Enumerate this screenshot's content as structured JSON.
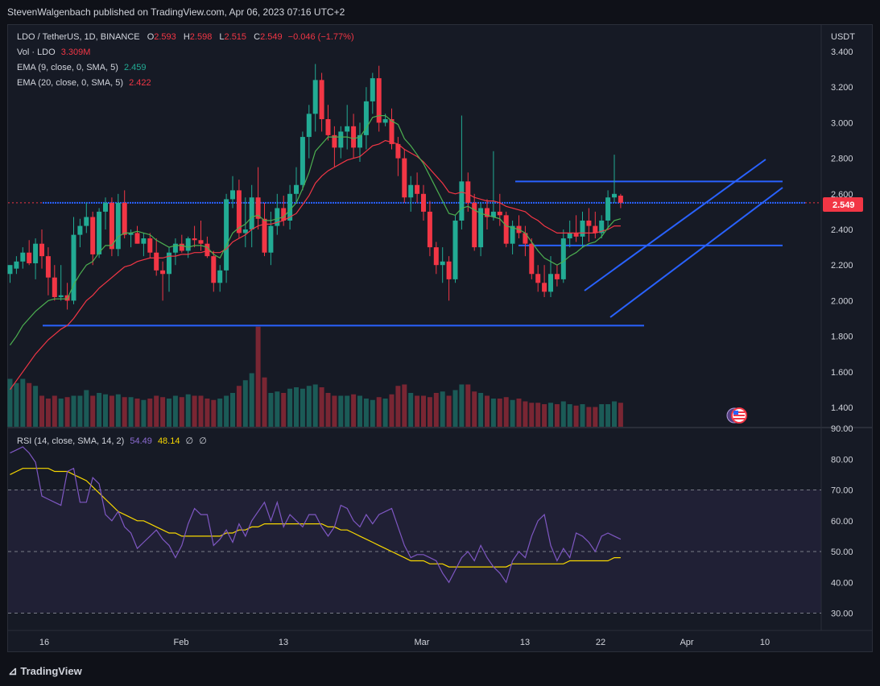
{
  "header": {
    "publisher": "StevenWalgenbach published on TradingView.com, Apr 06, 2023 07:16 UTC+2"
  },
  "legend": {
    "symbol": "LDO / TetherUS, 1D, BINANCE",
    "o_key": "O",
    "o_val": "2.593",
    "h_key": "H",
    "h_val": "2.598",
    "l_key": "L",
    "l_val": "2.515",
    "c_key": "C",
    "c_val": "2.549",
    "change": "−0.046 (−1.77%)",
    "vol_label": "Vol · LDO",
    "vol_val": "3.309M",
    "ema9_label": "EMA (9, close, 0, SMA, 5)",
    "ema9_val": "2.459",
    "ema20_label": "EMA (20, close, 0, SMA, 5)",
    "ema20_val": "2.422",
    "rsi_label": "RSI (14, close, SMA, 14, 2)",
    "rsi_val": "54.49",
    "rsi_ma_val": "48.14",
    "rsi_extra1": "∅",
    "rsi_extra2": "∅"
  },
  "price_axis": {
    "currency": "USDT",
    "current_price": "2.549",
    "ticks": [
      "3.400",
      "3.200",
      "3.000",
      "2.800",
      "2.600",
      "2.400",
      "2.200",
      "2.000",
      "1.800",
      "1.600",
      "1.400"
    ]
  },
  "rsi_axis": {
    "ticks": [
      "90.00",
      "80.00",
      "70.00",
      "60.00",
      "50.00",
      "40.00",
      "30.00"
    ]
  },
  "time_axis": {
    "labels": [
      "16",
      "Feb",
      "13",
      "Mar",
      "13",
      "22",
      "Apr",
      "10"
    ]
  },
  "footer": {
    "brand": "TradingView"
  },
  "colors": {
    "up": "#22ab94",
    "down": "#f23645",
    "ema9": "#4caf50",
    "ema20": "#f23645",
    "rsi": "#7e57c2",
    "rsi_ma": "#f7d700",
    "trendline": "#2962ff",
    "background": "#161a25"
  },
  "chart_data": {
    "type": "candlestick",
    "title": "LDO / TetherUS, 1D, BINANCE",
    "ylim": [
      1.34,
      3.46
    ],
    "candles": [
      [
        2.15,
        2.2,
        2.1,
        2.2
      ],
      [
        2.18,
        2.25,
        2.15,
        2.22
      ],
      [
        2.22,
        2.3,
        2.18,
        2.27
      ],
      [
        2.27,
        2.34,
        2.2,
        2.21
      ],
      [
        2.21,
        2.35,
        2.12,
        2.32
      ],
      [
        2.32,
        2.4,
        2.18,
        2.25
      ],
      [
        2.25,
        2.3,
        2.03,
        2.13
      ],
      [
        2.13,
        2.2,
        2.0,
        2.02
      ],
      [
        2.02,
        2.2,
        2.0,
        2.03
      ],
      [
        2.03,
        2.1,
        1.95,
        2.0
      ],
      [
        2.0,
        2.47,
        1.98,
        2.37
      ],
      [
        2.37,
        2.46,
        2.3,
        2.42
      ],
      [
        2.42,
        2.55,
        2.38,
        2.47
      ],
      [
        2.47,
        2.5,
        2.2,
        2.26
      ],
      [
        2.26,
        2.52,
        2.24,
        2.5
      ],
      [
        2.5,
        2.58,
        2.4,
        2.55
      ],
      [
        2.55,
        2.58,
        2.25,
        2.29
      ],
      [
        2.29,
        2.6,
        2.25,
        2.55
      ],
      [
        2.55,
        2.62,
        2.35,
        2.37
      ],
      [
        2.37,
        2.4,
        2.3,
        2.38
      ],
      [
        2.38,
        2.42,
        2.32,
        2.32
      ],
      [
        2.32,
        2.38,
        2.25,
        2.35
      ],
      [
        2.35,
        2.38,
        2.24,
        2.27
      ],
      [
        2.27,
        2.35,
        2.14,
        2.17
      ],
      [
        2.17,
        2.22,
        2.0,
        2.15
      ],
      [
        2.15,
        2.3,
        2.05,
        2.27
      ],
      [
        2.27,
        2.35,
        2.2,
        2.32
      ],
      [
        2.32,
        2.37,
        2.27,
        2.28
      ],
      [
        2.28,
        2.36,
        2.24,
        2.35
      ],
      [
        2.35,
        2.42,
        2.3,
        2.34
      ],
      [
        2.34,
        2.45,
        2.28,
        2.32
      ],
      [
        2.32,
        2.36,
        2.24,
        2.25
      ],
      [
        2.25,
        2.28,
        2.05,
        2.1
      ],
      [
        2.1,
        2.2,
        2.05,
        2.17
      ],
      [
        2.17,
        2.6,
        2.1,
        2.57
      ],
      [
        2.57,
        2.7,
        2.52,
        2.62
      ],
      [
        2.62,
        2.68,
        2.35,
        2.38
      ],
      [
        2.38,
        2.58,
        2.3,
        2.4
      ],
      [
        2.4,
        2.65,
        2.3,
        2.58
      ],
      [
        2.58,
        2.75,
        2.4,
        2.46
      ],
      [
        2.46,
        2.55,
        2.25,
        2.27
      ],
      [
        2.27,
        2.5,
        2.2,
        2.42
      ],
      [
        2.42,
        2.6,
        2.37,
        2.52
      ],
      [
        2.52,
        2.59,
        2.42,
        2.45
      ],
      [
        2.45,
        2.65,
        2.4,
        2.6
      ],
      [
        2.6,
        2.75,
        2.55,
        2.65
      ],
      [
        2.65,
        2.95,
        2.62,
        2.92
      ],
      [
        2.92,
        3.1,
        2.8,
        3.05
      ],
      [
        3.05,
        3.33,
        2.95,
        3.24
      ],
      [
        3.24,
        3.28,
        2.95,
        3.02
      ],
      [
        3.02,
        3.1,
        2.9,
        2.93
      ],
      [
        2.93,
        2.98,
        2.75,
        2.86
      ],
      [
        2.86,
        2.98,
        2.8,
        2.95
      ],
      [
        2.95,
        3.1,
        2.85,
        2.98
      ],
      [
        2.98,
        3.05,
        2.8,
        2.86
      ],
      [
        2.86,
        3.0,
        2.78,
        2.93
      ],
      [
        2.93,
        3.2,
        2.85,
        3.12
      ],
      [
        3.12,
        3.28,
        3.05,
        3.25
      ],
      [
        3.25,
        3.32,
        2.95,
        3.0
      ],
      [
        3.0,
        3.05,
        2.98,
        3.02
      ],
      [
        3.02,
        3.08,
        2.85,
        2.88
      ],
      [
        2.88,
        2.92,
        2.7,
        2.8
      ],
      [
        2.8,
        2.85,
        2.55,
        2.58
      ],
      [
        2.58,
        2.7,
        2.5,
        2.65
      ],
      [
        2.65,
        2.72,
        2.55,
        2.6
      ],
      [
        2.6,
        2.65,
        2.45,
        2.5
      ],
      [
        2.5,
        2.56,
        2.25,
        2.3
      ],
      [
        2.3,
        2.33,
        2.15,
        2.2
      ],
      [
        2.2,
        2.3,
        2.1,
        2.22
      ],
      [
        2.22,
        2.25,
        2.0,
        2.12
      ],
      [
        2.12,
        2.48,
        2.1,
        2.45
      ],
      [
        2.45,
        3.04,
        2.4,
        2.67
      ],
      [
        2.67,
        2.72,
        2.5,
        2.55
      ],
      [
        2.55,
        2.6,
        2.28,
        2.3
      ],
      [
        2.3,
        2.55,
        2.25,
        2.52
      ],
      [
        2.52,
        2.57,
        2.4,
        2.47
      ],
      [
        2.47,
        2.84,
        2.45,
        2.5
      ],
      [
        2.5,
        2.6,
        2.42,
        2.48
      ],
      [
        2.48,
        2.5,
        2.3,
        2.32
      ],
      [
        2.32,
        2.45,
        2.26,
        2.42
      ],
      [
        2.42,
        2.48,
        2.35,
        2.38
      ],
      [
        2.38,
        2.42,
        2.25,
        2.32
      ],
      [
        2.32,
        2.35,
        2.12,
        2.15
      ],
      [
        2.15,
        2.2,
        2.05,
        2.1
      ],
      [
        2.1,
        2.2,
        2.02,
        2.05
      ],
      [
        2.05,
        2.25,
        2.02,
        2.15
      ],
      [
        2.15,
        2.2,
        2.08,
        2.12
      ],
      [
        2.12,
        2.4,
        2.1,
        2.35
      ],
      [
        2.35,
        2.45,
        2.3,
        2.38
      ],
      [
        2.38,
        2.48,
        2.33,
        2.36
      ],
      [
        2.36,
        2.5,
        2.3,
        2.45
      ],
      [
        2.45,
        2.52,
        2.33,
        2.42
      ],
      [
        2.42,
        2.5,
        2.35,
        2.38
      ],
      [
        2.38,
        2.48,
        2.35,
        2.45
      ],
      [
        2.45,
        2.62,
        2.4,
        2.58
      ],
      [
        2.58,
        2.82,
        2.55,
        2.6
      ],
      [
        2.59,
        2.6,
        2.52,
        2.55
      ]
    ],
    "volume": [
      34,
      31,
      34,
      31,
      29,
      22,
      20,
      22,
      20,
      21,
      22,
      22,
      26,
      22,
      24,
      23,
      22,
      23,
      21,
      21,
      20,
      19,
      20,
      22,
      21,
      20,
      22,
      21,
      23,
      22,
      22,
      20,
      19,
      20,
      22,
      24,
      29,
      33,
      38,
      71,
      35,
      24,
      25,
      24,
      27,
      28,
      27,
      29,
      30,
      28,
      24,
      22,
      22,
      22,
      23,
      22,
      20,
      19,
      21,
      20,
      23,
      29,
      30,
      24,
      22,
      22,
      21,
      24,
      25,
      22,
      26,
      30,
      30,
      25,
      24,
      22,
      20,
      20,
      21,
      19,
      20,
      18,
      17,
      17,
      16,
      17,
      16,
      18,
      16,
      15,
      16,
      14,
      14,
      16,
      16,
      18,
      17
    ],
    "ema9": [
      1.75,
      1.8,
      1.86,
      1.9,
      1.94,
      1.97,
      2.0,
      2.01,
      2.01,
      2.01,
      2.09,
      2.15,
      2.2,
      2.22,
      2.27,
      2.31,
      2.31,
      2.36,
      2.38,
      2.38,
      2.39,
      2.38,
      2.37,
      2.34,
      2.32,
      2.3,
      2.31,
      2.31,
      2.3,
      2.31,
      2.31,
      2.3,
      2.26,
      2.24,
      2.31,
      2.38,
      2.41,
      2.43,
      2.47,
      2.48,
      2.45,
      2.45,
      2.46,
      2.47,
      2.51,
      2.55,
      2.63,
      2.72,
      2.84,
      2.88,
      2.92,
      2.92,
      2.92,
      2.92,
      2.91,
      2.92,
      2.97,
      3.03,
      3.04,
      3.04,
      3.01,
      2.99,
      2.91,
      2.87,
      2.82,
      2.77,
      2.7,
      2.63,
      2.56,
      2.49,
      2.48,
      2.52,
      2.53,
      2.51,
      2.49,
      2.48,
      2.47,
      2.46,
      2.42,
      2.41,
      2.4,
      2.38,
      2.33,
      2.28,
      2.24,
      2.22,
      2.2,
      2.22,
      2.25,
      2.27,
      2.3,
      2.32,
      2.33,
      2.36,
      2.41,
      2.45,
      2.46
    ],
    "ema20": [
      1.5,
      1.55,
      1.6,
      1.65,
      1.7,
      1.74,
      1.78,
      1.81,
      1.84,
      1.86,
      1.9,
      1.95,
      2.0,
      2.03,
      2.07,
      2.1,
      2.13,
      2.16,
      2.19,
      2.2,
      2.22,
      2.23,
      2.24,
      2.24,
      2.24,
      2.25,
      2.25,
      2.26,
      2.26,
      2.27,
      2.27,
      2.28,
      2.27,
      2.27,
      2.29,
      2.33,
      2.35,
      2.37,
      2.4,
      2.42,
      2.43,
      2.43,
      2.44,
      2.45,
      2.47,
      2.49,
      2.54,
      2.59,
      2.66,
      2.7,
      2.73,
      2.75,
      2.77,
      2.79,
      2.8,
      2.81,
      2.84,
      2.87,
      2.88,
      2.9,
      2.89,
      2.88,
      2.85,
      2.83,
      2.81,
      2.78,
      2.74,
      2.7,
      2.66,
      2.61,
      2.6,
      2.61,
      2.6,
      2.58,
      2.57,
      2.56,
      2.56,
      2.55,
      2.53,
      2.52,
      2.51,
      2.5,
      2.47,
      2.45,
      2.42,
      2.4,
      2.38,
      2.38,
      2.38,
      2.38,
      2.38,
      2.38,
      2.38,
      2.39,
      2.4,
      2.42,
      2.42
    ],
    "rsi": [
      82,
      83,
      84,
      82,
      79,
      68,
      67,
      66,
      65,
      76,
      77,
      66,
      66,
      74,
      72,
      62,
      60,
      63,
      58,
      56,
      51,
      53,
      55,
      57,
      54,
      52,
      48,
      52,
      59,
      64,
      62,
      62,
      52,
      54,
      57,
      53,
      59,
      55,
      60,
      63,
      66,
      60,
      66,
      58,
      62,
      60,
      58,
      62,
      62,
      58,
      55,
      58,
      65,
      64,
      60,
      58,
      62,
      59,
      62,
      63,
      64,
      58,
      52,
      48,
      49,
      49,
      48,
      47,
      43,
      40,
      44,
      48,
      50,
      47,
      52,
      48,
      45,
      43,
      40,
      47,
      50,
      48,
      55,
      60,
      62,
      52,
      47,
      51,
      48,
      56,
      55,
      53,
      50,
      55,
      56,
      55,
      54
    ],
    "rsi_ma": [
      75,
      76,
      77,
      77,
      77,
      77,
      77,
      76,
      76,
      76,
      75,
      74,
      73,
      71,
      69,
      67,
      65,
      63,
      62,
      61,
      60,
      60,
      59,
      58,
      57,
      56,
      56,
      55,
      55,
      55,
      55,
      55,
      55,
      55,
      56,
      56,
      57,
      57,
      58,
      58,
      59,
      59,
      59,
      59,
      59,
      59,
      59,
      59,
      59,
      59,
      58,
      58,
      57,
      57,
      56,
      55,
      54,
      53,
      52,
      51,
      50,
      49,
      48,
      47,
      47,
      47,
      46,
      46,
      46,
      45,
      45,
      45,
      45,
      45,
      45,
      45,
      45,
      45,
      45,
      46,
      46,
      46,
      46,
      46,
      46,
      46,
      46,
      46,
      47,
      47,
      47,
      47,
      47,
      47,
      47,
      48,
      48
    ],
    "levels": [
      2.55,
      1.86,
      2.67,
      2.31
    ],
    "rsi_levels": [
      70,
      50,
      30
    ]
  }
}
